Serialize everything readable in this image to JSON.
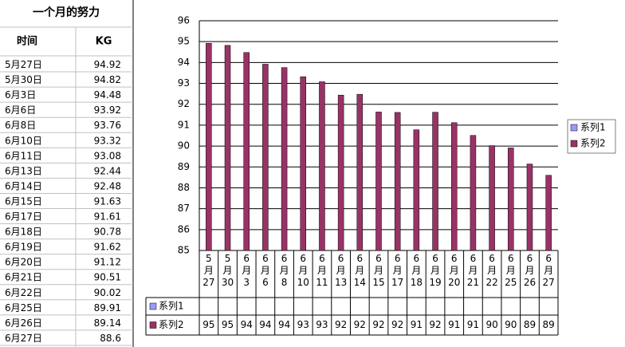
{
  "table": {
    "title": "一个月的努力",
    "headers": [
      "时间",
      "KG"
    ],
    "rows": [
      [
        "5月27日",
        94.92
      ],
      [
        "5月30日",
        94.82
      ],
      [
        "6月3日",
        94.48
      ],
      [
        "6月6日",
        93.92
      ],
      [
        "6月8日",
        93.76
      ],
      [
        "6月10日",
        93.32
      ],
      [
        "6月11日",
        93.08
      ],
      [
        "6月13日",
        92.44
      ],
      [
        "6月14日",
        92.48
      ],
      [
        "6月15日",
        91.63
      ],
      [
        "6月17日",
        91.61
      ],
      [
        "6月18日",
        90.78
      ],
      [
        "6月19日",
        91.62
      ],
      [
        "6月20日",
        91.12
      ],
      [
        "6月21日",
        90.51
      ],
      [
        "6月22日",
        90.02
      ],
      [
        "6月25日",
        89.91
      ],
      [
        "6月26日",
        89.14
      ],
      [
        "6月27日",
        88.6
      ]
    ]
  },
  "chart_data": {
    "type": "bar",
    "categories": [
      "5月27",
      "5月30",
      "6月3",
      "6月6",
      "6月8",
      "6月10",
      "6月11",
      "6月13",
      "6月14",
      "6月15",
      "6月17",
      "6月18",
      "6月19",
      "6月20",
      "6月21",
      "6月22",
      "6月25",
      "6月26",
      "6月27"
    ],
    "series": [
      {
        "name": "系列1",
        "color": "#9999ff",
        "values": [
          null,
          null,
          null,
          null,
          null,
          null,
          null,
          null,
          null,
          null,
          null,
          null,
          null,
          null,
          null,
          null,
          null,
          null,
          null
        ]
      },
      {
        "name": "系列2",
        "color": "#993366",
        "values": [
          94.92,
          94.82,
          94.48,
          93.92,
          93.76,
          93.32,
          93.08,
          92.44,
          92.48,
          91.63,
          91.61,
          90.78,
          91.62,
          91.12,
          90.51,
          90.02,
          89.91,
          89.14,
          88.6
        ],
        "value_labels": [
          "95",
          "95",
          "94",
          "94",
          "94",
          "93",
          "93",
          "92",
          "92",
          "92",
          "92",
          "91",
          "92",
          "91",
          "91",
          "90",
          "90",
          "89",
          "89"
        ]
      }
    ],
    "ylim": [
      85,
      96
    ],
    "yticks": [
      85,
      86,
      87,
      88,
      89,
      90,
      91,
      92,
      93,
      94,
      95,
      96
    ],
    "grid": true,
    "legend": "right"
  }
}
